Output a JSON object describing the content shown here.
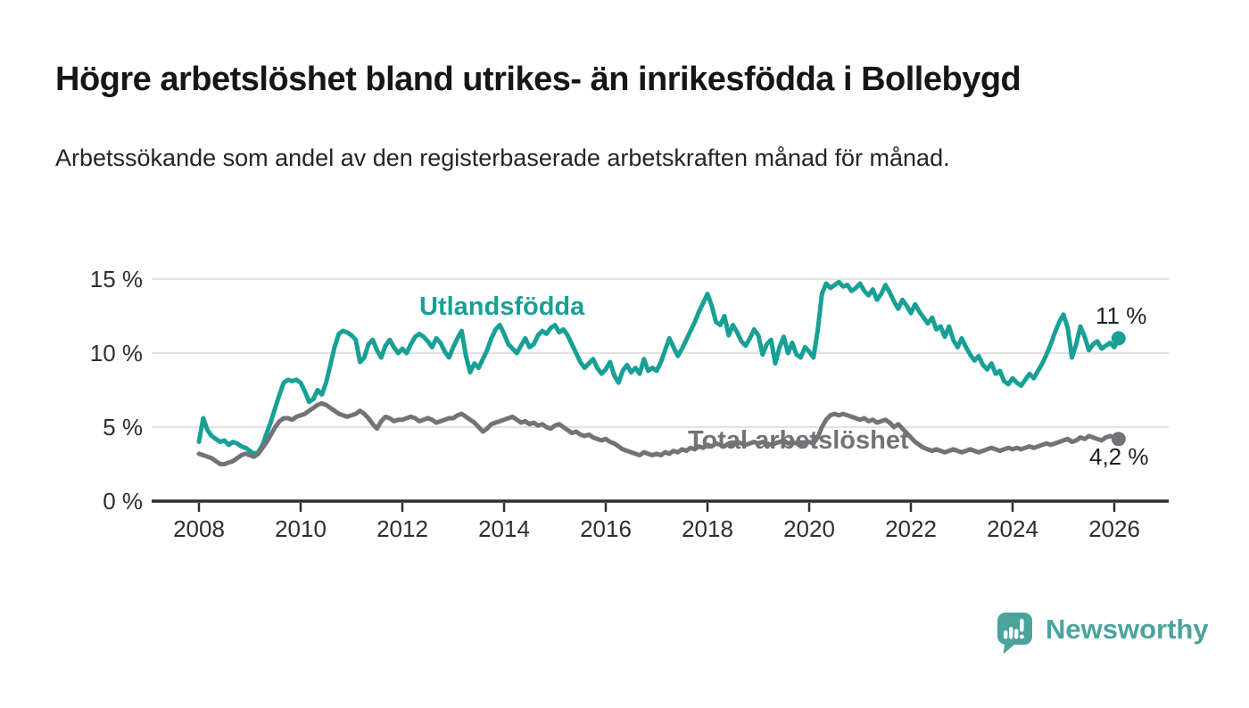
{
  "header": {
    "title": "Högre arbetslöshet bland utrikes- än inrikesfödda i Bollebygd",
    "subtitle": "Arbetssökande som andel av den registerbaserade arbetskraften månad för månad."
  },
  "footer": {
    "brand": "Newsworthy",
    "logo_icon": "newsworthy-speech-bubble-bar-chart-icon"
  },
  "chart_data": {
    "type": "line",
    "title": "Högre arbetslöshet bland utrikes- än inrikesfödda i Bollebygd",
    "subtitle": "Arbetssökande som andel av den registerbaserade arbetskraften månad för månad.",
    "x_unit": "month",
    "x_start": "2008-01",
    "x_end": "2026-02",
    "x_ticks": [
      "2008",
      "2010",
      "2012",
      "2014",
      "2016",
      "2018",
      "2020",
      "2022",
      "2024",
      "2026"
    ],
    "y_ticks": [
      {
        "label": "0 %",
        "value": 0
      },
      {
        "label": "5 %",
        "value": 5
      },
      {
        "label": "10 %",
        "value": 10
      },
      {
        "label": "15 %",
        "value": 15
      }
    ],
    "y_gridlines": [
      5,
      10,
      15
    ],
    "ylim": [
      0,
      15.5
    ],
    "grid": "horizontal-only",
    "legend": "inline-series-labels",
    "colors": {
      "axis": "#2e2e2e",
      "grid": "#d8d8d8",
      "value_label": "#1f1f1f",
      "brand_teal": "#4ba39e"
    },
    "series": [
      {
        "id": "utlandsfodda",
        "name": "Utlandsfödda",
        "color": "#18a096",
        "end_label": "11 %",
        "end_value": 11.0,
        "values": [
          4.0,
          5.6,
          4.8,
          4.4,
          4.2,
          4.0,
          4.1,
          3.8,
          4.0,
          3.9,
          3.7,
          3.6,
          3.4,
          3.2,
          3.3,
          3.8,
          4.6,
          5.4,
          6.3,
          7.2,
          8.0,
          8.2,
          8.1,
          8.2,
          8.0,
          7.4,
          6.7,
          6.9,
          7.5,
          7.2,
          8.0,
          9.2,
          10.4,
          11.3,
          11.5,
          11.4,
          11.2,
          10.9,
          9.4,
          9.7,
          10.6,
          10.9,
          10.2,
          9.7,
          10.5,
          10.9,
          10.4,
          10.0,
          10.3,
          10.0,
          10.6,
          11.1,
          11.3,
          11.1,
          10.8,
          10.4,
          11.0,
          10.7,
          10.1,
          9.7,
          10.4,
          11.0,
          11.5,
          9.8,
          8.7,
          9.3,
          9.0,
          9.6,
          10.2,
          11.0,
          11.6,
          11.9,
          11.3,
          10.6,
          10.3,
          10.0,
          10.5,
          11.0,
          10.4,
          10.6,
          11.2,
          11.5,
          11.3,
          11.7,
          11.9,
          11.4,
          11.6,
          11.2,
          10.6,
          10.0,
          9.4,
          9.0,
          9.3,
          9.6,
          9.0,
          8.6,
          8.9,
          9.4,
          8.5,
          8.0,
          8.8,
          9.2,
          8.7,
          9.0,
          8.6,
          9.6,
          8.8,
          9.0,
          8.8,
          9.4,
          10.2,
          11.0,
          10.4,
          9.8,
          10.3,
          10.9,
          11.5,
          12.1,
          12.8,
          13.4,
          14.0,
          13.2,
          12.1,
          11.9,
          12.5,
          11.2,
          11.9,
          11.4,
          10.8,
          10.5,
          11.0,
          11.6,
          11.2,
          9.9,
          10.6,
          10.9,
          9.3,
          10.4,
          11.1,
          10.0,
          10.7,
          9.9,
          9.7,
          10.4,
          10.1,
          9.7,
          11.5,
          14.0,
          14.7,
          14.4,
          14.6,
          14.8,
          14.5,
          14.6,
          14.2,
          14.4,
          14.7,
          14.2,
          13.9,
          14.3,
          13.6,
          14.0,
          14.6,
          14.1,
          13.5,
          13.0,
          13.6,
          13.2,
          12.7,
          13.3,
          12.8,
          12.4,
          12.0,
          12.4,
          11.6,
          11.8,
          11.1,
          11.8,
          10.9,
          10.4,
          11.0,
          10.4,
          9.9,
          9.5,
          9.8,
          9.2,
          8.9,
          9.3,
          8.6,
          8.8,
          8.1,
          7.9,
          8.3,
          8.0,
          7.8,
          8.2,
          8.6,
          8.3,
          8.8,
          9.3,
          9.9,
          10.6,
          11.4,
          12.1,
          12.6,
          11.7,
          9.7,
          10.6,
          11.8,
          11.1,
          10.2,
          10.6,
          10.8,
          10.3,
          10.5,
          10.7,
          10.4,
          11.0
        ]
      },
      {
        "id": "total",
        "name": "Total arbetslöshet",
        "color": "#737377",
        "end_label": "4,2 %",
        "end_value": 4.2,
        "values": [
          3.2,
          3.1,
          3.0,
          2.9,
          2.7,
          2.5,
          2.5,
          2.6,
          2.7,
          2.9,
          3.1,
          3.2,
          3.1,
          3.0,
          3.2,
          3.6,
          4.0,
          4.5,
          5.0,
          5.4,
          5.6,
          5.6,
          5.5,
          5.7,
          5.8,
          5.9,
          6.1,
          6.3,
          6.5,
          6.6,
          6.5,
          6.3,
          6.1,
          5.9,
          5.8,
          5.7,
          5.8,
          5.9,
          6.1,
          5.9,
          5.6,
          5.2,
          4.9,
          5.4,
          5.7,
          5.6,
          5.4,
          5.5,
          5.5,
          5.6,
          5.7,
          5.6,
          5.4,
          5.5,
          5.6,
          5.5,
          5.3,
          5.4,
          5.5,
          5.6,
          5.6,
          5.8,
          5.9,
          5.7,
          5.5,
          5.3,
          5.0,
          4.7,
          4.9,
          5.2,
          5.3,
          5.4,
          5.5,
          5.6,
          5.7,
          5.5,
          5.3,
          5.4,
          5.2,
          5.3,
          5.1,
          5.2,
          5.0,
          4.9,
          5.1,
          5.2,
          5.0,
          4.8,
          4.6,
          4.7,
          4.5,
          4.4,
          4.5,
          4.3,
          4.2,
          4.1,
          4.2,
          4.0,
          3.9,
          3.7,
          3.5,
          3.4,
          3.3,
          3.2,
          3.1,
          3.3,
          3.2,
          3.1,
          3.2,
          3.1,
          3.3,
          3.2,
          3.4,
          3.3,
          3.5,
          3.4,
          3.6,
          3.5,
          3.7,
          3.6,
          3.8,
          3.7,
          3.9,
          3.8,
          3.7,
          3.9,
          3.8,
          4.0,
          3.9,
          3.8,
          3.9,
          4.0,
          3.9,
          4.0,
          3.9,
          3.8,
          3.9,
          4.0,
          4.1,
          3.9,
          4.0,
          3.9,
          3.8,
          3.9,
          4.0,
          3.9,
          4.3,
          5.0,
          5.5,
          5.8,
          5.9,
          5.8,
          5.9,
          5.8,
          5.7,
          5.6,
          5.5,
          5.6,
          5.4,
          5.5,
          5.3,
          5.4,
          5.5,
          5.3,
          5.0,
          5.2,
          4.9,
          4.6,
          4.3,
          4.0,
          3.8,
          3.6,
          3.5,
          3.4,
          3.5,
          3.4,
          3.3,
          3.4,
          3.5,
          3.4,
          3.3,
          3.4,
          3.5,
          3.4,
          3.3,
          3.4,
          3.5,
          3.6,
          3.5,
          3.4,
          3.5,
          3.6,
          3.5,
          3.6,
          3.5,
          3.6,
          3.7,
          3.6,
          3.7,
          3.8,
          3.9,
          3.8,
          3.9,
          4.0,
          4.1,
          4.2,
          4.0,
          4.1,
          4.3,
          4.2,
          4.4,
          4.3,
          4.2,
          4.1,
          4.3,
          4.4,
          4.3,
          4.2
        ]
      }
    ]
  }
}
